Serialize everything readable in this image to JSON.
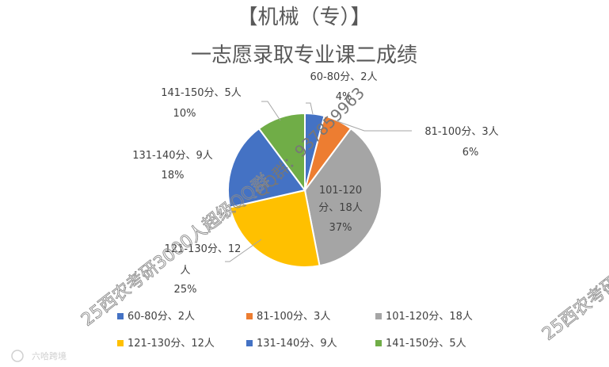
{
  "chart_data": {
    "type": "pie",
    "title_line1": "【机械（专）】",
    "title_line2": "一志愿录取专业课二成绩",
    "slices": [
      {
        "name": "60-80分、2人",
        "value": 2,
        "percent": "4%",
        "color": "#4472C4"
      },
      {
        "name": "81-100分、3人",
        "value": 3,
        "percent": "6%",
        "color": "#ED7D31"
      },
      {
        "name": "101-120分、18人",
        "value": 18,
        "percent": "37%",
        "color": "#A5A5A5"
      },
      {
        "name": "121-130分、12人",
        "value": 12,
        "percent": "25%",
        "color": "#FFC000"
      },
      {
        "name": "131-140分、9人",
        "value": 9,
        "percent": "18%",
        "color": "#4472C4"
      },
      {
        "name": "141-150分、5人",
        "value": 5,
        "percent": "10%",
        "color": "#70AD47"
      }
    ],
    "legend_position": "bottom"
  },
  "watermarks": {
    "qq": "QQ群：937859963",
    "left": "25西农考研3000人超级QQ群",
    "right": "25西农考研"
  },
  "logo": {
    "text": "六哈跨境"
  }
}
